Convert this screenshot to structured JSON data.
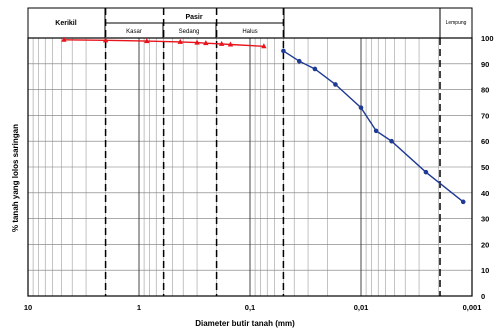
{
  "header": {
    "kerikil": "Kerikil",
    "pasir": "Pasir",
    "kasar": "Kasar",
    "sedang": "Sedang",
    "halus": "Halus",
    "lempung": "Lempung"
  },
  "chart_data": {
    "type": "line",
    "xlabel": "Diameter butir tanah (mm)",
    "ylabel": "% tanah yang lolos saringan",
    "x_scale": "log",
    "x_reversed": true,
    "xlim": [
      10,
      0.001
    ],
    "ylim": [
      0,
      100
    ],
    "x_tick_labels": [
      "10",
      "1",
      "0,1",
      "0,01",
      "0,001"
    ],
    "y_tick_labels": [
      "0",
      "10",
      "20",
      "30",
      "40",
      "50",
      "60",
      "70",
      "80",
      "90",
      "100"
    ],
    "grid": true,
    "boundaries_mm": [
      2,
      0.6,
      0.2,
      0.05
    ],
    "series": [
      {
        "color": "#e8141b",
        "marker": "triangle",
        "x": [
          4.75,
          2.0,
          0.85,
          0.425,
          0.3,
          0.25,
          0.18,
          0.15,
          0.075
        ],
        "y": [
          99.3,
          99.1,
          98.8,
          98.5,
          98.2,
          98.0,
          97.7,
          97.5,
          96.8
        ]
      },
      {
        "color": "#1f3a93",
        "marker": "circle",
        "x": [
          0.05,
          0.036,
          0.026,
          0.017,
          0.01,
          0.0073,
          0.0053,
          0.0026,
          0.0012
        ],
        "y": [
          95.0,
          91.0,
          88.0,
          82.0,
          73.0,
          64.0,
          60.0,
          48.0,
          36.5
        ]
      }
    ]
  }
}
